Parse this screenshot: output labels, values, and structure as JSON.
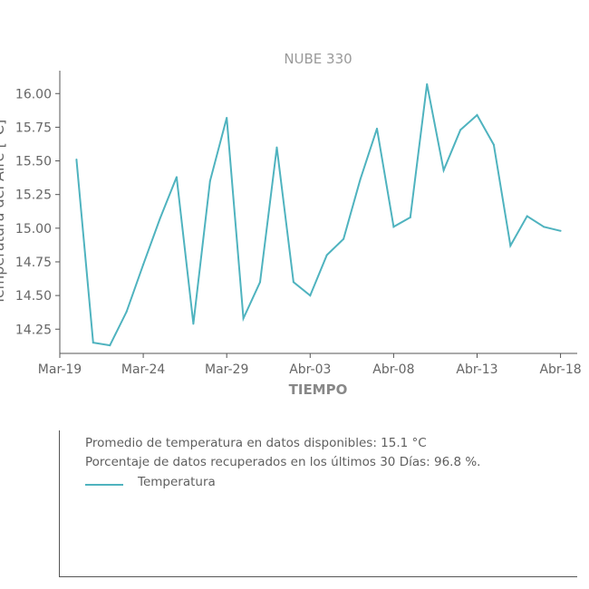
{
  "colors": {
    "line": "#4fb3bf",
    "axis": "#555555",
    "text": "#666666",
    "title": "#9a9a9a"
  },
  "chart_data": {
    "type": "line",
    "title": "NUBE 330",
    "xlabel": "TIEMPO",
    "ylabel": "Temperatura del Aire [°C]",
    "x": [
      "2020-03-20",
      "2020-03-21",
      "2020-03-22",
      "2020-03-23",
      "2020-03-24",
      "2020-03-25",
      "2020-03-26",
      "2020-03-27",
      "2020-03-28",
      "2020-03-29",
      "2020-03-30",
      "2020-03-31",
      "2020-04-01",
      "2020-04-02",
      "2020-04-03",
      "2020-04-04",
      "2020-04-05",
      "2020-04-06",
      "2020-04-07",
      "2020-04-08",
      "2020-04-09",
      "2020-04-10",
      "2020-04-11",
      "2020-04-12",
      "2020-04-13",
      "2020-04-14",
      "2020-04-15",
      "2020-04-16",
      "2020-04-17",
      "2020-04-18"
    ],
    "series": [
      {
        "name": "Temperatura",
        "values": [
          15.51,
          14.15,
          14.13,
          14.38,
          14.73,
          15.07,
          15.38,
          14.29,
          15.35,
          15.82,
          14.33,
          14.6,
          15.6,
          14.6,
          14.5,
          14.8,
          14.92,
          15.36,
          15.74,
          15.01,
          15.08,
          16.07,
          15.43,
          15.73,
          15.84,
          15.62,
          14.87,
          15.09,
          15.01,
          14.98
        ]
      }
    ],
    "xticks": [
      "Mar-19",
      "Mar-24",
      "Mar-29",
      "Abr-03",
      "Abr-08",
      "Abr-13",
      "Abr-18"
    ],
    "xtick_dates": [
      "2020-03-19",
      "2020-03-24",
      "2020-03-29",
      "2020-04-03",
      "2020-04-08",
      "2020-04-13",
      "2020-04-18"
    ],
    "yticks": [
      14.25,
      14.5,
      14.75,
      15.0,
      15.25,
      15.5,
      15.75,
      16.0
    ],
    "xlim": [
      "2020-03-19",
      "2020-04-19"
    ],
    "ylim": [
      14.07,
      16.17
    ],
    "grid": false,
    "legend": "below"
  },
  "info": {
    "line1": "Promedio de temperatura en datos disponibles: 15.1 °C",
    "line2": "Porcentaje de datos recuperados en los últimos 30 Días: 96.8 %.",
    "legend_label": "Temperatura"
  }
}
